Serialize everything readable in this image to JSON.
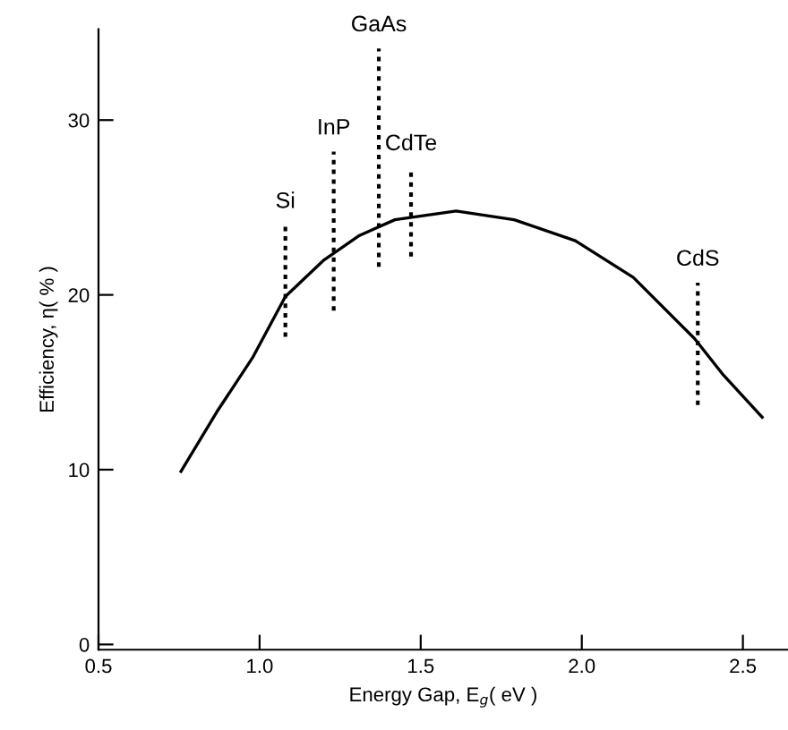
{
  "chart_data": {
    "type": "line",
    "xlabel": "Energy Gap, E$_{g}$( eV )",
    "ylabel": "Efficiency, η( % )",
    "xlim": [
      0.5,
      2.64
    ],
    "ylim": [
      -0.3,
      35.2
    ],
    "xticks": [
      0.5,
      {
        "value": 1.0,
        "label": "1.0"
      },
      1.5,
      {
        "value": 2.0,
        "label": "2.0"
      },
      2.5
    ],
    "yticks": [
      0,
      10,
      20,
      30
    ],
    "grid": false,
    "legend": false,
    "series": [
      {
        "color": "#000000",
        "line_style": "solid",
        "x": [
          0.756,
          0.867,
          0.978,
          1.08,
          1.2,
          1.31,
          1.42,
          1.61,
          1.79,
          1.98,
          2.16,
          2.35,
          2.44,
          2.56
        ],
        "values": [
          9.9,
          13.3,
          16.4,
          19.9,
          22.0,
          23.4,
          24.3,
          24.8,
          24.3,
          23.1,
          21.0,
          17.5,
          15.4,
          13.0
        ]
      },
      {
        "name": "Si",
        "color": "#000000",
        "line_style": "dotted",
        "x": [
          1.08,
          1.08
        ],
        "values": [
          17.6,
          24.0
        ]
      },
      {
        "name": "InP",
        "color": "#000000",
        "line_style": "dotted",
        "x": [
          1.23,
          1.23
        ],
        "values": [
          19.1,
          28.2
        ]
      },
      {
        "name": "GaAs",
        "color": "#000000",
        "line_style": "dotted",
        "x": [
          1.37,
          1.37
        ],
        "values": [
          21.6,
          34.1
        ]
      },
      {
        "name": "CdTe",
        "color": "#000000",
        "line_style": "dotted",
        "x": [
          1.47,
          1.47
        ],
        "values": [
          22.2,
          27.3
        ]
      },
      {
        "name": "CdS",
        "color": "#000000",
        "line_style": "dotted",
        "x": [
          2.36,
          2.36
        ],
        "values": [
          13.7,
          20.7
        ]
      }
    ]
  }
}
